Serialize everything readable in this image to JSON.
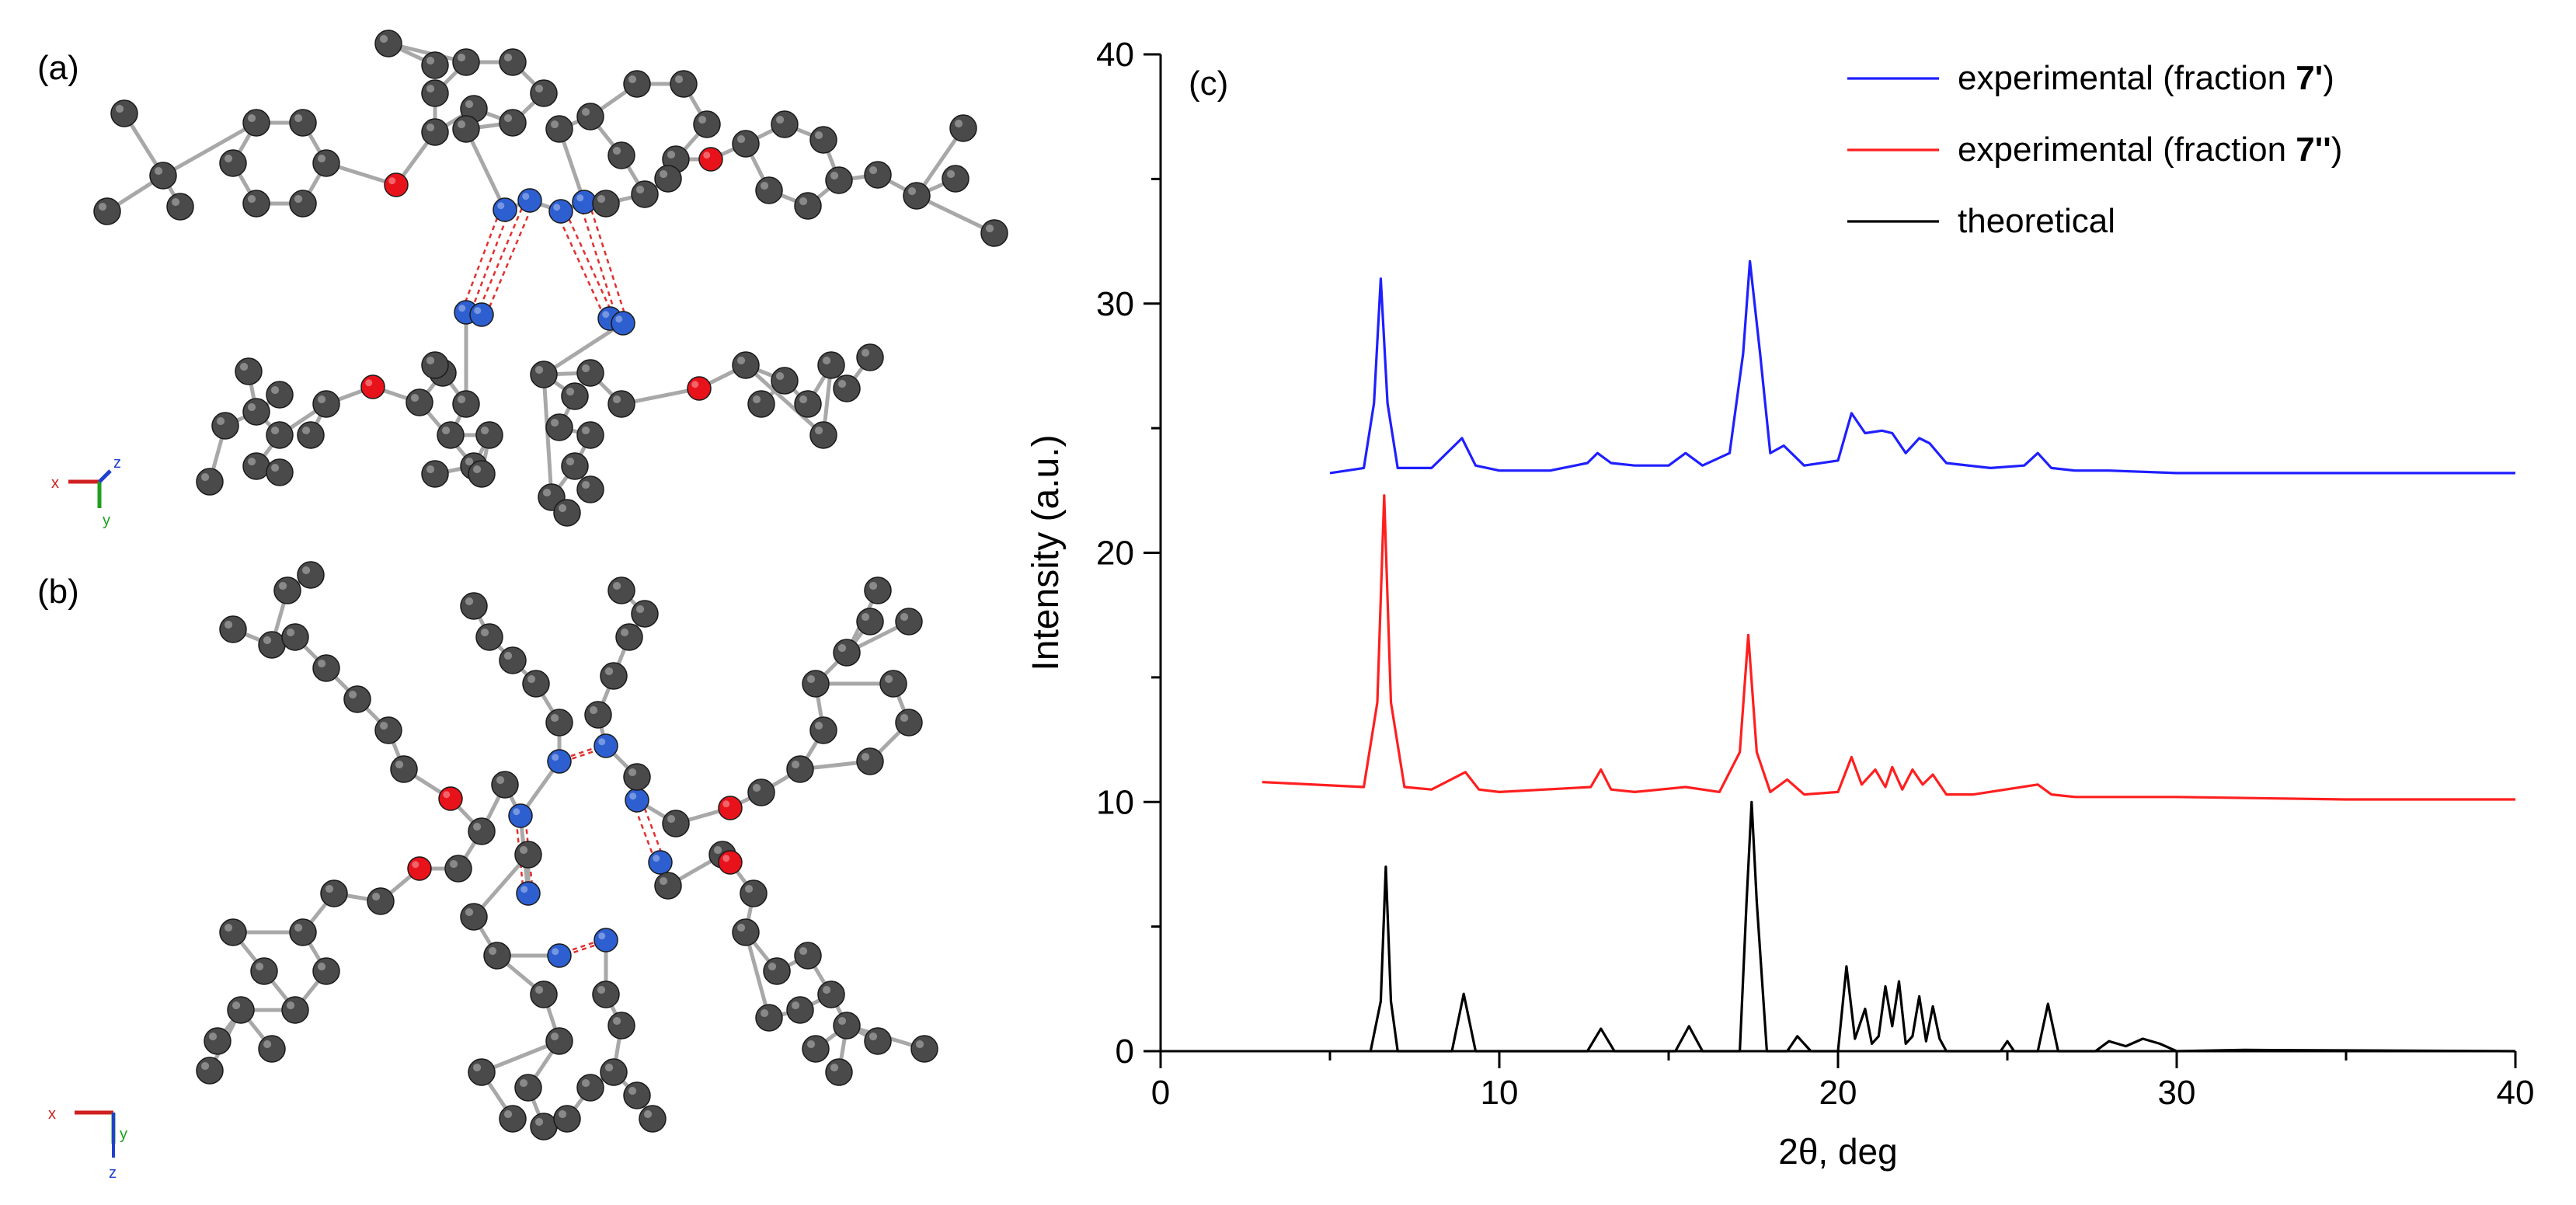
{
  "panels": {
    "a": {
      "label": "(a)"
    },
    "b": {
      "label": "(b)"
    },
    "c": {
      "label": "(c)"
    }
  },
  "axis_triads": {
    "a": {
      "x": "x",
      "y": "y",
      "z": "z"
    },
    "b": {
      "x": "x",
      "y": "y",
      "z": "z"
    }
  },
  "colors": {
    "carbon": "#4a4a4a",
    "nitrogen": "#2d5fd0",
    "oxygen": "#e8121b",
    "bond": "#a8a8a8",
    "hbond": "#e23030",
    "blue_series": "#1f1fff",
    "red_series": "#ff1f1f",
    "black_series": "#000000"
  },
  "chart_data": {
    "type": "line",
    "title": "",
    "xlabel": "2θ, deg",
    "ylabel": "Intensity (a.u.)",
    "xlim": [
      0,
      40
    ],
    "ylim": [
      0,
      40
    ],
    "xticks": [
      "0",
      "10",
      "20",
      "30",
      "40"
    ],
    "yticks": [
      "0",
      "10",
      "20",
      "30",
      "40"
    ],
    "grid": false,
    "legend_position": "top-right",
    "series": [
      {
        "name": "experimental (fraction 7')",
        "legend_prefix": "experimental (fraction ",
        "legend_bold": "7'",
        "legend_suffix": ")",
        "color": "#1f1fff",
        "x": [
          5.0,
          6.0,
          6.3,
          6.5,
          6.7,
          7.0,
          8.0,
          8.9,
          9.3,
          10.0,
          11.5,
          12.6,
          12.9,
          13.3,
          14.0,
          15.0,
          15.5,
          16.0,
          16.8,
          17.2,
          17.4,
          17.7,
          18.0,
          18.4,
          19.0,
          20.0,
          20.4,
          20.8,
          21.3,
          21.6,
          22.0,
          22.4,
          22.7,
          23.2,
          24.5,
          25.5,
          25.9,
          26.3,
          27.0,
          28.0,
          30.0,
          35.0,
          40.0
        ],
        "y": [
          23.2,
          23.4,
          26.0,
          31.0,
          26.0,
          23.4,
          23.4,
          24.6,
          23.5,
          23.3,
          23.3,
          23.6,
          24.0,
          23.6,
          23.5,
          23.5,
          24.0,
          23.5,
          24.0,
          28.0,
          31.7,
          28.0,
          24.0,
          24.3,
          23.5,
          23.7,
          25.6,
          24.8,
          24.9,
          24.8,
          24.0,
          24.6,
          24.4,
          23.6,
          23.4,
          23.5,
          24.0,
          23.4,
          23.3,
          23.3,
          23.2,
          23.2,
          23.2
        ]
      },
      {
        "name": "experimental (fraction 7'')",
        "legend_prefix": "experimental (fraction ",
        "legend_bold": "7''",
        "legend_suffix": ")",
        "color": "#ff1f1f",
        "x": [
          3.0,
          6.0,
          6.4,
          6.6,
          6.8,
          7.2,
          8.0,
          9.0,
          9.4,
          10.0,
          12.7,
          13.0,
          13.3,
          14.0,
          15.5,
          16.5,
          17.1,
          17.35,
          17.6,
          18.0,
          18.5,
          19.0,
          20.0,
          20.4,
          20.7,
          21.1,
          21.4,
          21.6,
          21.9,
          22.2,
          22.5,
          22.8,
          23.2,
          24.0,
          25.9,
          26.3,
          27.0,
          30.0,
          35.0,
          40.0
        ],
        "y": [
          10.8,
          10.6,
          14.0,
          22.3,
          14.0,
          10.6,
          10.5,
          11.2,
          10.5,
          10.4,
          10.6,
          11.3,
          10.5,
          10.4,
          10.6,
          10.4,
          12.0,
          16.7,
          12.0,
          10.4,
          10.9,
          10.3,
          10.4,
          11.8,
          10.7,
          11.3,
          10.6,
          11.4,
          10.5,
          11.3,
          10.7,
          11.1,
          10.3,
          10.3,
          10.7,
          10.3,
          10.2,
          10.2,
          10.1,
          10.1
        ]
      },
      {
        "name": "theoretical",
        "legend_prefix": "theoretical",
        "legend_bold": "",
        "legend_suffix": "",
        "color": "#000000",
        "x": [
          6.2,
          6.5,
          6.65,
          6.8,
          7.0,
          8.6,
          8.95,
          9.3,
          12.6,
          13.0,
          13.4,
          15.2,
          15.6,
          16.0,
          17.1,
          17.3,
          17.45,
          17.6,
          17.9,
          18.5,
          18.8,
          19.2,
          20.0,
          20.25,
          20.5,
          20.8,
          21.0,
          21.2,
          21.4,
          21.6,
          21.8,
          22.0,
          22.2,
          22.4,
          22.6,
          22.8,
          23.0,
          23.2,
          24.8,
          25.0,
          25.2,
          25.9,
          26.2,
          26.5,
          27.6,
          28.0,
          28.5,
          29.0,
          29.5,
          30.0,
          32.0,
          40.0
        ],
        "y": [
          0.0,
          2.0,
          7.4,
          2.0,
          0.0,
          0.0,
          2.3,
          0.0,
          0.0,
          0.9,
          0.0,
          0.0,
          1.0,
          0.0,
          0.0,
          6.0,
          10.0,
          6.0,
          0.0,
          0.0,
          0.6,
          0.0,
          0.0,
          3.4,
          0.5,
          1.7,
          0.3,
          0.6,
          2.6,
          1.0,
          2.8,
          0.3,
          0.6,
          2.2,
          0.4,
          1.8,
          0.5,
          0.0,
          0.0,
          0.4,
          0.0,
          0.0,
          1.9,
          0.0,
          0.0,
          0.4,
          0.2,
          0.5,
          0.3,
          0.0,
          0.05,
          0.0
        ]
      }
    ]
  }
}
